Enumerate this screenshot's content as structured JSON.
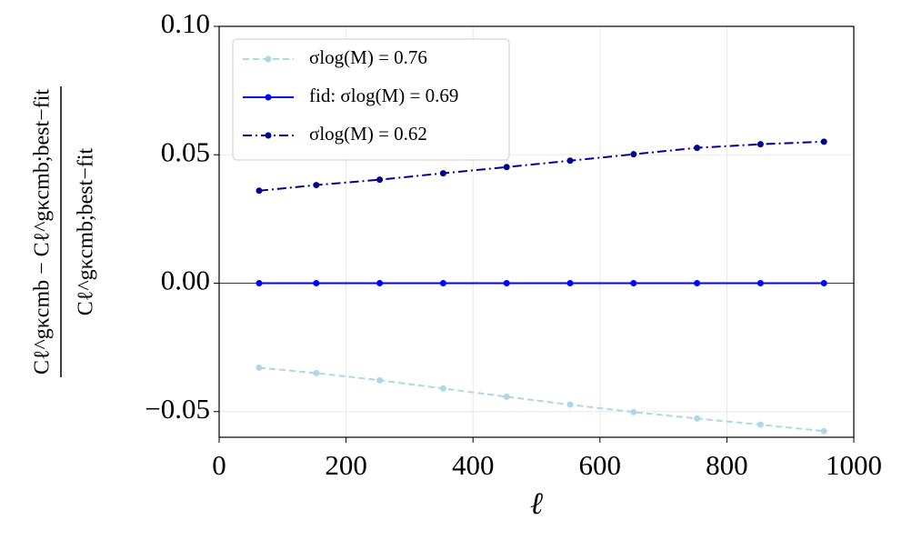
{
  "chart_data": {
    "type": "line",
    "x_label": "ℓ",
    "y_label_numerator": "Cℓ^gκcmb − Cℓ^gκcmb;best−fit",
    "y_label_denominator": "Cℓ^gκcmb;best−fit",
    "x": [
      63,
      153,
      253,
      353,
      453,
      553,
      653,
      753,
      853,
      953
    ],
    "series": [
      {
        "name": "σlog(M) = 0.76",
        "color": "#add8e6",
        "dash": "dashed",
        "values": [
          -0.0329,
          -0.035,
          -0.0378,
          -0.041,
          -0.0442,
          -0.0473,
          -0.0502,
          -0.0527,
          -0.0551,
          -0.0576
        ]
      },
      {
        "name": "fid: σlog(M) = 0.69",
        "color": "#0000ff",
        "dash": "solid",
        "values": [
          0,
          0,
          0,
          0,
          0,
          0,
          0,
          0,
          0,
          0
        ]
      },
      {
        "name": "σlog(M) = 0.62",
        "color": "#00008b",
        "dash": "dashdot",
        "values": [
          0.036,
          0.0382,
          0.0403,
          0.0428,
          0.0452,
          0.0477,
          0.0502,
          0.0527,
          0.0541,
          0.0551
        ]
      }
    ],
    "xlim": [
      0,
      1000
    ],
    "xticks": [
      0,
      200,
      400,
      600,
      800,
      1000
    ],
    "ylim": [
      -0.06,
      0.1
    ],
    "yticks": [
      {
        "value": -0.05,
        "label": "−0.05"
      },
      {
        "value": 0,
        "label": "0.00"
      },
      {
        "value": 0.05,
        "label": "0.05"
      },
      {
        "value": 0.1,
        "label": "0.10"
      }
    ],
    "hline": 0,
    "grid": true,
    "legend": "upper left"
  }
}
